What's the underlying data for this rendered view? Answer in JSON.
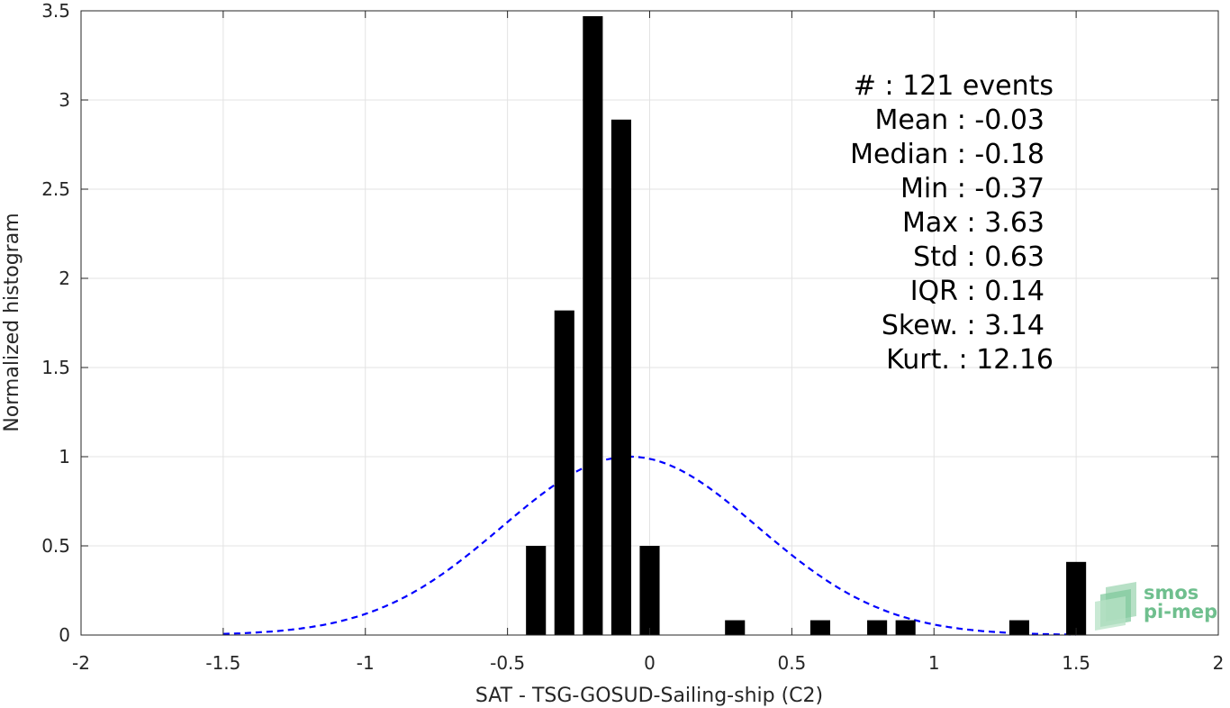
{
  "chart_data": {
    "type": "bar",
    "xlabel": "SAT - TSG-GOSUD-Sailing-ship (C2)",
    "ylabel": "Normalized histogram",
    "xlim": [
      -2,
      2
    ],
    "ylim": [
      0,
      3.5
    ],
    "xticks": [
      "-2",
      "-1.5",
      "-1",
      "-0.5",
      "0",
      "0.5",
      "1",
      "1.5",
      "2"
    ],
    "yticks": [
      "0",
      "0.5",
      "1",
      "1.5",
      "2",
      "2.5",
      "3",
      "3.5"
    ],
    "grid": true,
    "bar_color": "#000000",
    "bars": [
      {
        "x": -0.4,
        "y": 0.5
      },
      {
        "x": -0.3,
        "y": 1.82
      },
      {
        "x": -0.2,
        "y": 3.47
      },
      {
        "x": -0.1,
        "y": 2.89
      },
      {
        "x": 0.0,
        "y": 0.5
      },
      {
        "x": 0.3,
        "y": 0.083
      },
      {
        "x": 0.6,
        "y": 0.083
      },
      {
        "x": 0.8,
        "y": 0.083
      },
      {
        "x": 0.9,
        "y": 0.083
      },
      {
        "x": 1.3,
        "y": 0.083
      },
      {
        "x": 1.5,
        "y": 0.41
      }
    ],
    "fit_curve": {
      "style": "dashed",
      "color": "#0000ff",
      "mean": -0.07,
      "std": 0.45,
      "peak": 1.0,
      "x_range": [
        -1.5,
        1.5
      ]
    },
    "stats": [
      "#  : 121 events",
      "Mean : -0.03",
      "Median : -0.18",
      "Min : -0.37",
      "Max : 3.63",
      "Std : 0.63",
      "IQR : 0.14",
      "Skew. : 3.14",
      "Kurt. : 12.16"
    ]
  },
  "logo": {
    "line1": "smos",
    "line2": "pi-mep"
  }
}
